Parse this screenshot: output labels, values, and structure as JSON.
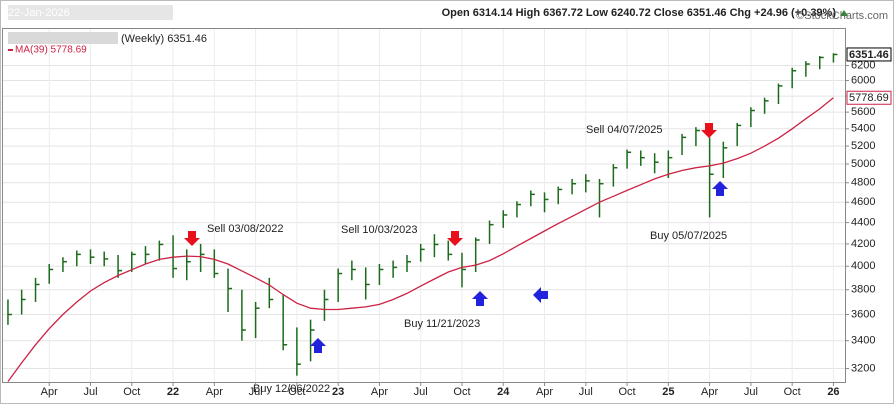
{
  "chart_data": {
    "type": "ohlc",
    "date": "22-Jan-2026",
    "quote": "Open 6314.14 High 6367.72 Low 6240.72 Close 6351.46 Chg +24.96 (+0.39%)",
    "credit": "©StockCharts.com",
    "log_scale": true,
    "grid": true,
    "xlim": [
      2020.97,
      2026.07
    ],
    "ylim": [
      3100,
      6700
    ],
    "xticks": [
      {
        "value": 2021.25,
        "label": "Apr"
      },
      {
        "value": 2021.5,
        "label": "Jul"
      },
      {
        "value": 2021.75,
        "label": "Oct"
      },
      {
        "value": 2022,
        "label": "22"
      },
      {
        "value": 2022.25,
        "label": "Apr"
      },
      {
        "value": 2022.5,
        "label": "Jul"
      },
      {
        "value": 2022.75,
        "label": "Oct"
      },
      {
        "value": 2023,
        "label": "23"
      },
      {
        "value": 2023.25,
        "label": "Apr"
      },
      {
        "value": 2023.5,
        "label": "Jul"
      },
      {
        "value": 2023.75,
        "label": "Oct"
      },
      {
        "value": 2024,
        "label": "24"
      },
      {
        "value": 2024.25,
        "label": "Apr"
      },
      {
        "value": 2024.5,
        "label": "Jul"
      },
      {
        "value": 2024.75,
        "label": "Oct"
      },
      {
        "value": 2025,
        "label": "25"
      },
      {
        "value": 2025.25,
        "label": "Apr"
      },
      {
        "value": 2025.5,
        "label": "Jul"
      },
      {
        "value": 2025.75,
        "label": "Oct"
      },
      {
        "value": 2026,
        "label": "26"
      }
    ],
    "yticks": [
      3200,
      3400,
      3600,
      3800,
      4000,
      4200,
      4400,
      4600,
      4800,
      5000,
      5200,
      5400,
      5600,
      5800,
      6000,
      6200
    ],
    "price_tags": [
      {
        "value": 6351.46,
        "label": "6351.46",
        "color": "#000000"
      },
      {
        "value": 5778.69,
        "label": "5778.69",
        "color": "#cc2244"
      }
    ],
    "annotations": [
      "Sell 03/08/2022",
      "Sell 10/03/2023",
      "Sell 04/07/2025",
      "Buy 12/06/2022",
      "Buy 11/21/2023",
      "Buy 05/07/2025"
    ],
    "x": [
      2021.0,
      2021.083,
      2021.167,
      2021.25,
      2021.333,
      2021.417,
      2021.5,
      2021.583,
      2021.667,
      2021.75,
      2021.833,
      2021.917,
      2022.0,
      2022.083,
      2022.167,
      2022.25,
      2022.333,
      2022.417,
      2022.5,
      2022.583,
      2022.667,
      2022.75,
      2022.833,
      2022.917,
      2023.0,
      2023.083,
      2023.167,
      2023.25,
      2023.333,
      2023.417,
      2023.5,
      2023.583,
      2023.667,
      2023.75,
      2023.833,
      2023.917,
      2024.0,
      2024.083,
      2024.167,
      2024.25,
      2024.333,
      2024.417,
      2024.5,
      2024.583,
      2024.667,
      2024.75,
      2024.833,
      2024.917,
      2025.0,
      2025.083,
      2025.167,
      2025.25,
      2025.333,
      2025.417,
      2025.5,
      2025.583,
      2025.667,
      2025.75,
      2025.833,
      2025.917,
      2026.0
    ],
    "series": [
      {
        "name": "(Weekly) 6351.46",
        "color": "#1b6b1b",
        "high": [
          3720,
          3800,
          3900,
          4020,
          4080,
          4140,
          4150,
          4130,
          4100,
          4130,
          4180,
          4230,
          4280,
          4150,
          4200,
          4150,
          3980,
          3800,
          3700,
          3900,
          3760,
          3500,
          3560,
          3800,
          3980,
          4050,
          3990,
          4020,
          4050,
          4100,
          4200,
          4290,
          4230,
          4120,
          4260,
          4420,
          4520,
          4610,
          4720,
          4700,
          4760,
          4840,
          4890,
          4840,
          5000,
          5160,
          5150,
          5120,
          5150,
          5340,
          5420,
          5300,
          5250,
          5470,
          5660,
          5780,
          5960,
          6170,
          6260,
          6330,
          6367.72
        ],
        "low": [
          3520,
          3600,
          3700,
          3850,
          3950,
          4000,
          4020,
          4000,
          3900,
          3950,
          4020,
          4050,
          3900,
          3880,
          3950,
          3900,
          3620,
          3400,
          3420,
          3650,
          3330,
          3150,
          3250,
          3550,
          3700,
          3880,
          3720,
          3840,
          3900,
          3950,
          4040,
          4080,
          4050,
          3820,
          3950,
          4200,
          4350,
          4450,
          4560,
          4500,
          4580,
          4680,
          4700,
          4450,
          4760,
          4950,
          4980,
          4900,
          4850,
          5100,
          5200,
          4450,
          4850,
          5200,
          5420,
          5580,
          5700,
          5900,
          6050,
          6150,
          6240.72
        ],
        "close": [
          3600,
          3720,
          3844,
          3972,
          4040,
          4105,
          4080,
          4065,
          3962,
          4105,
          4105,
          4195,
          3980,
          4040,
          4105,
          3937,
          3810,
          3480,
          3650,
          3720,
          3370,
          3230,
          3480,
          3720,
          3937,
          3972,
          3844,
          3972,
          3990,
          4040,
          4150,
          4195,
          4105,
          3972,
          4236,
          4380,
          4474,
          4577,
          4680,
          4628,
          4730,
          4790,
          4820,
          4790,
          4960,
          5130,
          5070,
          5020,
          5070,
          5300,
          5380,
          4890,
          5180,
          5440,
          5620,
          5740,
          5930,
          6130,
          6220,
          6310,
          6351.46
        ]
      },
      {
        "name": "MA(39) 5778.69",
        "color": "#cc2244",
        "type": "line",
        "values": [
          3110,
          3240,
          3370,
          3490,
          3600,
          3700,
          3790,
          3860,
          3920,
          3970,
          4020,
          4060,
          4080,
          4090,
          4085,
          4060,
          4020,
          3960,
          3900,
          3840,
          3760,
          3690,
          3650,
          3640,
          3640,
          3650,
          3660,
          3680,
          3720,
          3770,
          3830,
          3890,
          3950,
          3990,
          4010,
          4050,
          4110,
          4180,
          4250,
          4320,
          4390,
          4460,
          4530,
          4600,
          4660,
          4720,
          4780,
          4840,
          4890,
          4930,
          4960,
          4980,
          5010,
          5060,
          5120,
          5200,
          5290,
          5400,
          5520,
          5640,
          5778.69
        ]
      }
    ]
  }
}
